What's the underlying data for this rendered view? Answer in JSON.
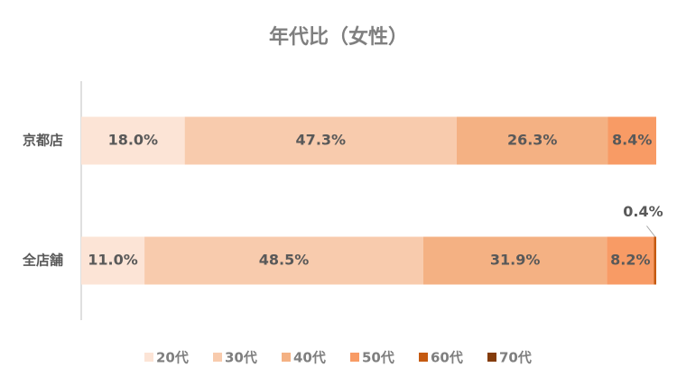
{
  "chart_data": {
    "type": "stacked-bar-horizontal",
    "title": "年代比（女性）",
    "categories": [
      "京都店",
      "全店舗"
    ],
    "xlim": [
      0,
      100
    ],
    "series": [
      {
        "name": "20代",
        "color": "#fce4d6",
        "values": [
          18.0,
          11.0
        ],
        "value_labels": [
          "18.0%",
          "11.0%"
        ]
      },
      {
        "name": "30代",
        "color": "#f8cbad",
        "values": [
          47.3,
          48.5
        ],
        "value_labels": [
          "47.3%",
          "48.5%"
        ]
      },
      {
        "name": "40代",
        "color": "#f4b183",
        "values": [
          26.3,
          31.9
        ],
        "value_labels": [
          "26.3%",
          "31.9%"
        ]
      },
      {
        "name": "50代",
        "color": "#f89b65",
        "values": [
          8.4,
          8.2
        ],
        "value_labels": [
          "8.4%",
          "8.2%"
        ]
      },
      {
        "name": "60代",
        "color": "#c55a11",
        "values": [
          0,
          0.4
        ],
        "value_labels": [
          null,
          "0.4%"
        ]
      },
      {
        "name": "70代",
        "color": "#843c0c",
        "values": [
          0,
          0
        ],
        "value_labels": [
          null,
          null
        ]
      }
    ],
    "legend": "bottom"
  }
}
